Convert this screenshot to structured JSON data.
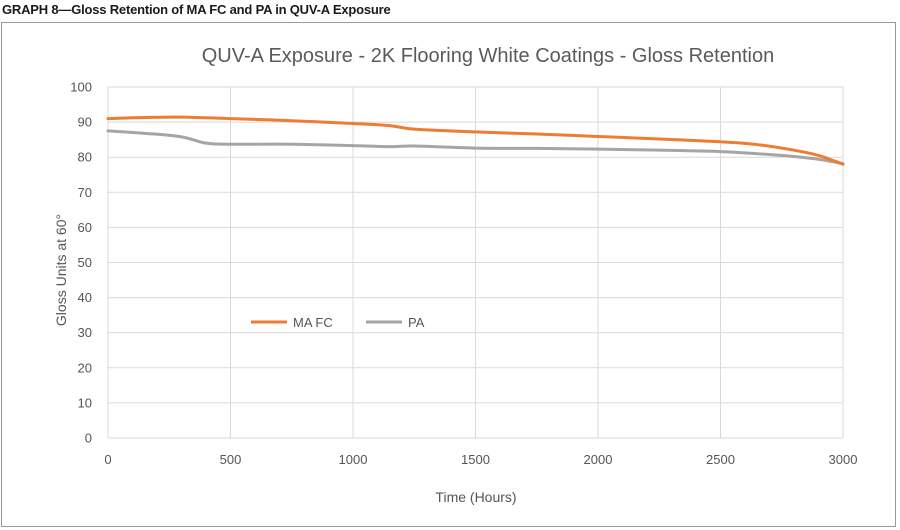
{
  "figure": {
    "caption": "GRAPH 8—Gloss Retention of MA FC and PA in QUV-A Exposure"
  },
  "chart_data": {
    "type": "line",
    "title": "QUV-A Exposure - 2K Flooring White Coatings - Gloss Retention",
    "xlabel": "Time (Hours)",
    "ylabel": "Gloss Units at 60°",
    "xlim": [
      0,
      3000
    ],
    "ylim": [
      0,
      100
    ],
    "xticks": [
      0,
      500,
      1000,
      1500,
      2000,
      2500,
      3000
    ],
    "yticks": [
      0,
      10,
      20,
      30,
      40,
      50,
      60,
      70,
      80,
      90,
      100
    ],
    "grid": "vertical and horizontal",
    "legend_position": "center-left",
    "series": [
      {
        "name": "MA FC",
        "color": "#ED7D31",
        "x": [
          0,
          150,
          300,
          500,
          750,
          1000,
          1150,
          1250,
          1500,
          1750,
          2000,
          2250,
          2500,
          2650,
          2800,
          2900,
          3000
        ],
        "y": [
          91.0,
          91.3,
          91.4,
          91.0,
          90.4,
          89.6,
          89.0,
          88.0,
          87.2,
          86.6,
          85.9,
          85.2,
          84.4,
          83.6,
          82.0,
          80.5,
          78.0
        ]
      },
      {
        "name": "PA",
        "color": "#A5A5A5",
        "x": [
          0,
          150,
          300,
          400,
          500,
          750,
          1000,
          1150,
          1250,
          1500,
          1750,
          2000,
          2250,
          2500,
          2650,
          2800,
          2900,
          3000
        ],
        "y": [
          87.5,
          86.8,
          85.8,
          84.0,
          83.7,
          83.7,
          83.3,
          83.0,
          83.2,
          82.6,
          82.5,
          82.3,
          82.0,
          81.6,
          81.0,
          80.2,
          79.4,
          78.2
        ]
      }
    ]
  }
}
